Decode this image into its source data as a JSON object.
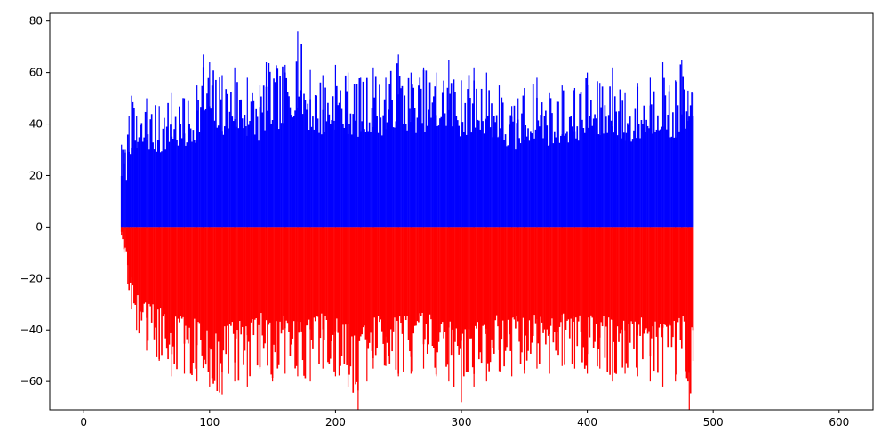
{
  "chart_data": {
    "type": "bar",
    "title": "",
    "xlabel": "",
    "ylabel": "",
    "xlim": [
      -27,
      627
    ],
    "ylim": [
      -71,
      83
    ],
    "grid": false,
    "x_ticks": [
      0,
      100,
      200,
      300,
      400,
      500,
      600
    ],
    "y_ticks": [
      -60,
      -40,
      -20,
      0,
      20,
      40,
      60,
      80
    ],
    "x_start": 30,
    "x_end": 484,
    "x_step": 1,
    "series": [
      {
        "color": "#0000ff",
        "envelope": [
          [
            30,
            32
          ],
          [
            33,
            30
          ],
          [
            36,
            43
          ],
          [
            38,
            51
          ],
          [
            42,
            43
          ],
          [
            50,
            50
          ],
          [
            60,
            47
          ],
          [
            70,
            52
          ],
          [
            80,
            50
          ],
          [
            90,
            55
          ],
          [
            95,
            67
          ],
          [
            100,
            64
          ],
          [
            110,
            59
          ],
          [
            120,
            62
          ],
          [
            130,
            58
          ],
          [
            140,
            55
          ],
          [
            145,
            64
          ],
          [
            160,
            63
          ],
          [
            170,
            76
          ],
          [
            180,
            61
          ],
          [
            190,
            59
          ],
          [
            200,
            63
          ],
          [
            210,
            60
          ],
          [
            220,
            58
          ],
          [
            230,
            62
          ],
          [
            240,
            58
          ],
          [
            250,
            67
          ],
          [
            260,
            60
          ],
          [
            270,
            62
          ],
          [
            280,
            60
          ],
          [
            290,
            65
          ],
          [
            300,
            57
          ],
          [
            310,
            62
          ],
          [
            320,
            60
          ],
          [
            330,
            55
          ],
          [
            340,
            47
          ],
          [
            345,
            50
          ],
          [
            350,
            54
          ],
          [
            360,
            58
          ],
          [
            370,
            52
          ],
          [
            380,
            55
          ],
          [
            390,
            54
          ],
          [
            400,
            60
          ],
          [
            410,
            56
          ],
          [
            420,
            62
          ],
          [
            430,
            52
          ],
          [
            440,
            56
          ],
          [
            450,
            58
          ],
          [
            460,
            64
          ],
          [
            465,
            55
          ],
          [
            470,
            57
          ],
          [
            475,
            65
          ],
          [
            480,
            53
          ],
          [
            484,
            52
          ]
        ],
        "floor": 0.6,
        "seed": 7
      },
      {
        "color": "#ff0000",
        "envelope": [
          [
            30,
            -3
          ],
          [
            32,
            -10
          ],
          [
            35,
            -22
          ],
          [
            38,
            -32
          ],
          [
            42,
            -40
          ],
          [
            50,
            -48
          ],
          [
            60,
            -52
          ],
          [
            70,
            -58
          ],
          [
            80,
            -57
          ],
          [
            90,
            -60
          ],
          [
            100,
            -62
          ],
          [
            110,
            -65
          ],
          [
            120,
            -60
          ],
          [
            130,
            -62
          ],
          [
            140,
            -55
          ],
          [
            150,
            -60
          ],
          [
            160,
            -57
          ],
          [
            170,
            -58
          ],
          [
            180,
            -60
          ],
          [
            190,
            -55
          ],
          [
            200,
            -58
          ],
          [
            210,
            -62
          ],
          [
            218,
            -71
          ],
          [
            225,
            -60
          ],
          [
            230,
            -55
          ],
          [
            240,
            -54
          ],
          [
            250,
            -58
          ],
          [
            260,
            -57
          ],
          [
            270,
            -55
          ],
          [
            280,
            -58
          ],
          [
            290,
            -60
          ],
          [
            300,
            -68
          ],
          [
            310,
            -62
          ],
          [
            320,
            -60
          ],
          [
            330,
            -56
          ],
          [
            340,
            -58
          ],
          [
            350,
            -57
          ],
          [
            360,
            -55
          ],
          [
            370,
            -57
          ],
          [
            380,
            -54
          ],
          [
            390,
            -55
          ],
          [
            400,
            -57
          ],
          [
            410,
            -55
          ],
          [
            420,
            -60
          ],
          [
            430,
            -57
          ],
          [
            440,
            -58
          ],
          [
            450,
            -60
          ],
          [
            460,
            -62
          ],
          [
            470,
            -60
          ],
          [
            478,
            -56
          ],
          [
            481,
            -71
          ],
          [
            484,
            -52
          ]
        ],
        "floor": 0.6,
        "seed": 13
      }
    ]
  }
}
